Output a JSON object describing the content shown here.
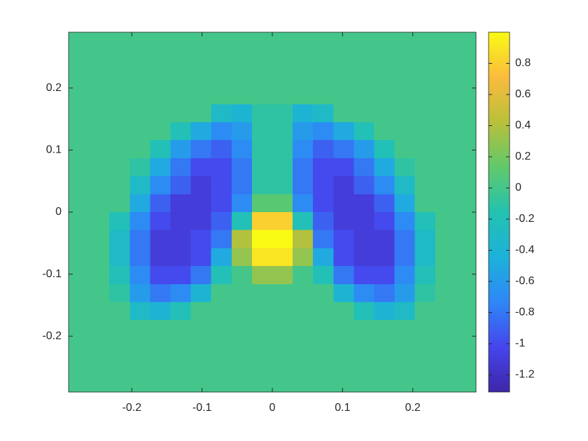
{
  "chart_data": {
    "type": "heatmap",
    "xlim": [
      -0.29,
      0.29
    ],
    "ylim": [
      -0.29,
      0.29
    ],
    "xticks": [
      -0.2,
      -0.1,
      0,
      0.1,
      0.2
    ],
    "yticks": [
      -0.2,
      -0.1,
      0,
      0.1,
      0.2
    ],
    "clim": [
      -1.31,
      1.0
    ],
    "cticks": [
      -1.2,
      -1,
      -0.8,
      -0.6,
      -0.4,
      -0.2,
      0,
      0.2,
      0.4,
      0.6,
      0.8
    ],
    "colormap": [
      "#3e26a8",
      "#4645ec",
      "#2e87f7",
      "#1cb2da",
      "#23c2b0",
      "#60c96b",
      "#b9c03a",
      "#fbbb3d",
      "#f9fb14"
    ],
    "z": [
      [
        0,
        0,
        0,
        0,
        0,
        0,
        0,
        0,
        0,
        0,
        0,
        0,
        0,
        0,
        0,
        0,
        0,
        0,
        0,
        0
      ],
      [
        0,
        0,
        0,
        0,
        0,
        0,
        0,
        0,
        0,
        0,
        0,
        0,
        0,
        0,
        0,
        0,
        0,
        0,
        0,
        0
      ],
      [
        0,
        0,
        0,
        0,
        0,
        0,
        0,
        0,
        0,
        0,
        0,
        0,
        0,
        0,
        0,
        0,
        0,
        0,
        0,
        0
      ],
      [
        0,
        0,
        0,
        0,
        0,
        0,
        0,
        0,
        0,
        0,
        0,
        0,
        0,
        0,
        0,
        0,
        0,
        0,
        0,
        0
      ],
      [
        0,
        0,
        0,
        0,
        0,
        0,
        0,
        -0.3,
        -0.4,
        -0.1,
        -0.1,
        -0.4,
        -0.3,
        0,
        0,
        0,
        0,
        0,
        0,
        0
      ],
      [
        0,
        0,
        0,
        0,
        0,
        -0.2,
        -0.5,
        -0.7,
        -0.6,
        -0.1,
        -0.1,
        -0.6,
        -0.7,
        -0.5,
        -0.2,
        0,
        0,
        0,
        0,
        0
      ],
      [
        0,
        0,
        0,
        0,
        -0.2,
        -0.6,
        -0.8,
        -0.9,
        -0.7,
        -0.1,
        -0.1,
        -0.7,
        -0.9,
        -0.8,
        -0.6,
        -0.2,
        0,
        0,
        0,
        0
      ],
      [
        0,
        0,
        0,
        -0.1,
        -0.5,
        -0.8,
        -1.0,
        -1.0,
        -0.8,
        -0.1,
        -0.1,
        -0.8,
        -1.0,
        -1.0,
        -0.8,
        -0.5,
        -0.1,
        0,
        0,
        0
      ],
      [
        0,
        0,
        0,
        -0.3,
        -0.7,
        -0.9,
        -1.1,
        -1.0,
        -0.8,
        -0.1,
        -0.1,
        -0.8,
        -1.0,
        -1.1,
        -0.9,
        -0.7,
        -0.3,
        0,
        0,
        0
      ],
      [
        0,
        0,
        0,
        -0.5,
        -0.9,
        -1.1,
        -1.1,
        -1.0,
        -0.7,
        0.1,
        0.1,
        -0.7,
        -1.0,
        -1.1,
        -1.1,
        -0.9,
        -0.5,
        0,
        0,
        0
      ],
      [
        0,
        0,
        -0.2,
        -0.7,
        -1.0,
        -1.1,
        -1.1,
        -0.9,
        -0.2,
        0.8,
        0.8,
        -0.2,
        -0.9,
        -1.1,
        -1.1,
        -1.0,
        -0.7,
        -0.2,
        0,
        0
      ],
      [
        0,
        0,
        -0.3,
        -0.8,
        -1.1,
        -1.1,
        -1.0,
        -0.8,
        0.4,
        1.0,
        1.0,
        0.4,
        -0.8,
        -1.0,
        -1.1,
        -1.1,
        -0.8,
        -0.3,
        0,
        0
      ],
      [
        0,
        0,
        -0.3,
        -0.8,
        -1.1,
        -1.1,
        -1.0,
        -0.5,
        0.3,
        0.9,
        0.9,
        0.3,
        -0.5,
        -1.0,
        -1.1,
        -1.1,
        -0.8,
        -0.3,
        0,
        0
      ],
      [
        0,
        0,
        -0.2,
        -0.7,
        -1.0,
        -1.0,
        -0.8,
        -0.2,
        0,
        0.3,
        0.3,
        0,
        -0.2,
        -0.8,
        -1.0,
        -1.0,
        -0.7,
        -0.2,
        0,
        0
      ],
      [
        0,
        0,
        -0.1,
        -0.6,
        -0.8,
        -0.7,
        -0.4,
        0,
        0,
        0,
        0,
        0,
        0,
        -0.4,
        -0.7,
        -0.8,
        -0.6,
        -0.1,
        0,
        0
      ],
      [
        0,
        0,
        0,
        -0.3,
        -0.4,
        -0.2,
        0,
        0,
        0,
        0,
        0,
        0,
        0,
        0,
        -0.2,
        -0.4,
        -0.3,
        0,
        0,
        0
      ],
      [
        0,
        0,
        0,
        0,
        0,
        0,
        0,
        0,
        0,
        0,
        0,
        0,
        0,
        0,
        0,
        0,
        0,
        0,
        0,
        0
      ],
      [
        0,
        0,
        0,
        0,
        0,
        0,
        0,
        0,
        0,
        0,
        0,
        0,
        0,
        0,
        0,
        0,
        0,
        0,
        0,
        0
      ],
      [
        0,
        0,
        0,
        0,
        0,
        0,
        0,
        0,
        0,
        0,
        0,
        0,
        0,
        0,
        0,
        0,
        0,
        0,
        0,
        0
      ],
      [
        0,
        0,
        0,
        0,
        0,
        0,
        0,
        0,
        0,
        0,
        0,
        0,
        0,
        0,
        0,
        0,
        0,
        0,
        0,
        0
      ]
    ]
  }
}
